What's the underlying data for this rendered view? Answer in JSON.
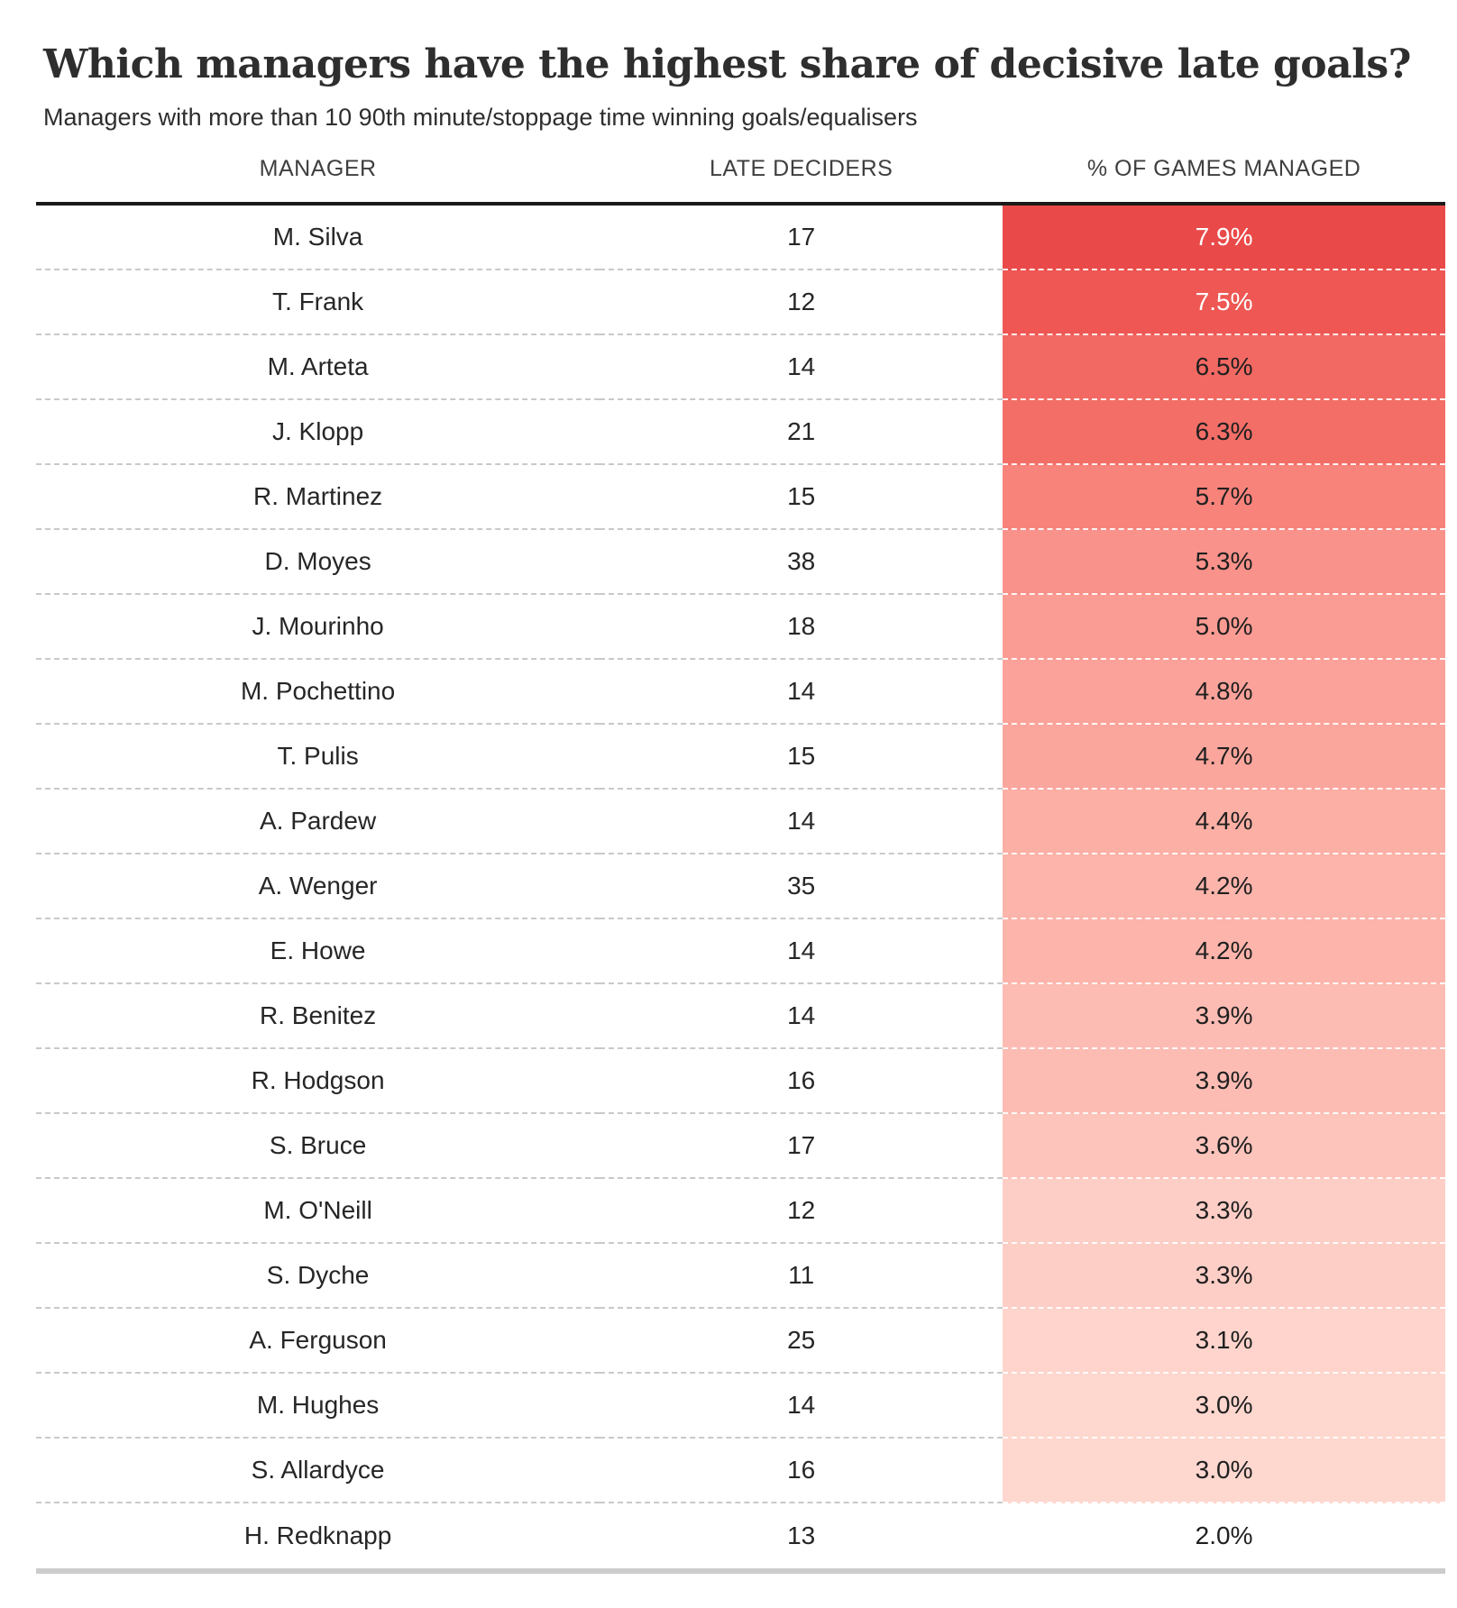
{
  "chart_data": {
    "type": "table",
    "title": "Which managers have the highest share of decisive late goals?",
    "subtitle": "Managers with more than 10 90th minute/stoppage time winning goals/equalisers",
    "columns": [
      "MANAGER",
      "LATE DECIDERS",
      "% OF GAMES MANAGED"
    ],
    "heatmap_column": "% OF GAMES MANAGED",
    "color_scale": {
      "min_value": 2.0,
      "max_value": 7.9,
      "min_color": "#FFFFFF",
      "max_color": "#E94A49"
    },
    "rows": [
      {
        "manager": "M. Silva",
        "late_deciders": "17",
        "pct": "7.9%",
        "cell_color": "#E94A49",
        "pct_text_color": "#FFFFFF"
      },
      {
        "manager": "T. Frank",
        "late_deciders": "12",
        "pct": "7.5%",
        "cell_color": "#EE5753",
        "pct_text_color": "#FFFFFF"
      },
      {
        "manager": "M. Arteta",
        "late_deciders": "14",
        "pct": "6.5%",
        "cell_color": "#F26963",
        "pct_text_color": "#1F1F1F"
      },
      {
        "manager": "J. Klopp",
        "late_deciders": "21",
        "pct": "6.3%",
        "cell_color": "#F36E67",
        "pct_text_color": "#1F1F1F"
      },
      {
        "manager": "R. Martinez",
        "late_deciders": "15",
        "pct": "5.7%",
        "cell_color": "#F8837B",
        "pct_text_color": "#1F1F1F"
      },
      {
        "manager": "D. Moyes",
        "late_deciders": "38",
        "pct": "5.3%",
        "cell_color": "#F9928A",
        "pct_text_color": "#1F1F1F"
      },
      {
        "manager": "J. Mourinho",
        "late_deciders": "18",
        "pct": "5.0%",
        "cell_color": "#FA9C93",
        "pct_text_color": "#1F1F1F"
      },
      {
        "manager": "M. Pochettino",
        "late_deciders": "14",
        "pct": "4.8%",
        "cell_color": "#FBA29A",
        "pct_text_color": "#1F1F1F"
      },
      {
        "manager": "T. Pulis",
        "late_deciders": "15",
        "pct": "4.7%",
        "cell_color": "#FBA69D",
        "pct_text_color": "#1F1F1F"
      },
      {
        "manager": "A. Pardew",
        "late_deciders": "14",
        "pct": "4.4%",
        "cell_color": "#FBAFA5",
        "pct_text_color": "#1F1F1F"
      },
      {
        "manager": "A. Wenger",
        "late_deciders": "35",
        "pct": "4.2%",
        "cell_color": "#FCB4AB",
        "pct_text_color": "#1F1F1F"
      },
      {
        "manager": "E. Howe",
        "late_deciders": "14",
        "pct": "4.2%",
        "cell_color": "#FCB4AB",
        "pct_text_color": "#1F1F1F"
      },
      {
        "manager": "R. Benitez",
        "late_deciders": "14",
        "pct": "3.9%",
        "cell_color": "#FCBCB3",
        "pct_text_color": "#1F1F1F"
      },
      {
        "manager": "R. Hodgson",
        "late_deciders": "16",
        "pct": "3.9%",
        "cell_color": "#FCBCB3",
        "pct_text_color": "#1F1F1F"
      },
      {
        "manager": "S. Bruce",
        "late_deciders": "17",
        "pct": "3.6%",
        "cell_color": "#FDC4BB",
        "pct_text_color": "#1F1F1F"
      },
      {
        "manager": "M. O'Neill",
        "late_deciders": "12",
        "pct": "3.3%",
        "cell_color": "#FDCEC6",
        "pct_text_color": "#1F1F1F"
      },
      {
        "manager": "S. Dyche",
        "late_deciders": "11",
        "pct": "3.3%",
        "cell_color": "#FDCEC6",
        "pct_text_color": "#1F1F1F"
      },
      {
        "manager": "A. Ferguson",
        "late_deciders": "25",
        "pct": "3.1%",
        "cell_color": "#FED4CC",
        "pct_text_color": "#1F1F1F"
      },
      {
        "manager": "M. Hughes",
        "late_deciders": "14",
        "pct": "3.0%",
        "cell_color": "#FED7CF",
        "pct_text_color": "#1F1F1F"
      },
      {
        "manager": "S. Allardyce",
        "late_deciders": "16",
        "pct": "3.0%",
        "cell_color": "#FED7CF",
        "pct_text_color": "#1F1F1F"
      },
      {
        "manager": "H. Redknapp",
        "late_deciders": "13",
        "pct": "2.0%",
        "cell_color": "#FFFFFF",
        "pct_text_color": "#1F1F1F"
      }
    ]
  },
  "colors": {
    "page_background": "#FFFFFF",
    "title_text": "#2E2E2E",
    "header_text": "#3F3F3F",
    "body_text": "#262626",
    "header_rule": "#1A1A1A",
    "bottom_rule": "#CCCCCC",
    "row_divider": "#C9C9C9",
    "row_divider_on_heat": "#FFFFFF"
  }
}
